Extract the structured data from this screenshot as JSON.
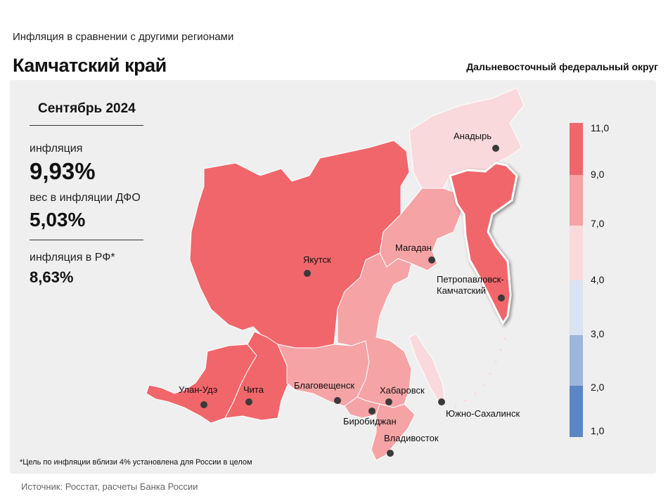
{
  "header": {
    "subtitle": "Инфляция  в сравнении  с другими  регионами",
    "title": "Камчатский край",
    "district": "Дальневосточный федеральный округ"
  },
  "stats": {
    "period": "Сентябрь 2024",
    "inflation_label": "инфляция",
    "inflation_value": "9,93%",
    "weight_label": "вес в инфляции  ДФО",
    "weight_value": "5,03%",
    "rf_label": "инфляция  в РФ*",
    "rf_value": "8,63%"
  },
  "footnote": "*Цель по инфляции вблизи 4% установлена для России в целом",
  "source": "Источник: Росстат, расчеты Банка России",
  "legend": {
    "bins": [
      {
        "from": "9,0",
        "to": "11,0",
        "color": "#f0666b"
      },
      {
        "from": "7,0",
        "to": "9,0",
        "color": "#f5a3a5"
      },
      {
        "from": "4,0",
        "to": "7,0",
        "color": "#f9d9dc"
      },
      {
        "from": "3,0",
        "to": "4,0",
        "color": "#d9e3f3"
      },
      {
        "from": "2,0",
        "to": "3,0",
        "color": "#9cb6dc"
      },
      {
        "from": "1,0",
        "to": "2,0",
        "color": "#5b86c4"
      }
    ],
    "ticks": [
      "11,0",
      "9,0",
      "7,0",
      "4,0",
      "3,0",
      "2,0",
      "1,0"
    ]
  },
  "cities": {
    "anadyr": "Анадырь",
    "magadan": "Магадан",
    "yakutsk": "Якутск",
    "petropavlovsk_1": "Петропавловск-",
    "petropavlovsk_2": "Камчатский",
    "ulan_ude": "Улан-Удэ",
    "chita": "Чита",
    "blagoveshchensk": "Благовещенск",
    "khabarovsk": "Хабаровск",
    "birobidzhan": "Биробиджан",
    "yuzhno": "Южно-Сахалинск",
    "vladivostok": "Владивосток"
  },
  "colors": {
    "high": "#f0666b",
    "mid": "#f5a3a5",
    "low": "#f9d9dc",
    "panel": "#efefef"
  }
}
